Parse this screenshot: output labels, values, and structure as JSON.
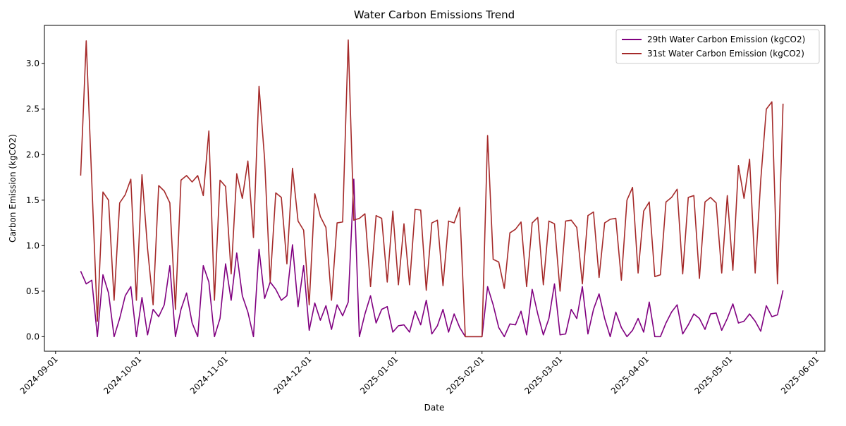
{
  "chart_data": {
    "type": "line",
    "title": "Water Carbon Emissions Trend",
    "xlabel": "Date",
    "ylabel": "Carbon Emission (kgCO2)",
    "x": [
      "2024-09-10",
      "2024-09-12",
      "2024-09-14",
      "2024-09-16",
      "2024-09-18",
      "2024-09-20",
      "2024-09-22",
      "2024-09-24",
      "2024-09-26",
      "2024-09-28",
      "2024-09-30",
      "2024-10-02",
      "2024-10-04",
      "2024-10-06",
      "2024-10-08",
      "2024-10-10",
      "2024-10-12",
      "2024-10-14",
      "2024-10-16",
      "2024-10-18",
      "2024-10-20",
      "2024-10-22",
      "2024-10-24",
      "2024-10-26",
      "2024-10-28",
      "2024-10-30",
      "2024-11-01",
      "2024-11-03",
      "2024-11-05",
      "2024-11-07",
      "2024-11-09",
      "2024-11-11",
      "2024-11-13",
      "2024-11-15",
      "2024-11-17",
      "2024-11-19",
      "2024-11-21",
      "2024-11-23",
      "2024-11-25",
      "2024-11-27",
      "2024-11-29",
      "2024-12-01",
      "2024-12-03",
      "2024-12-05",
      "2024-12-07",
      "2024-12-09",
      "2024-12-11",
      "2024-12-13",
      "2024-12-15",
      "2024-12-17",
      "2024-12-19",
      "2024-12-21",
      "2024-12-23",
      "2024-12-25",
      "2024-12-27",
      "2024-12-29",
      "2024-12-31",
      "2025-01-02",
      "2025-01-04",
      "2025-01-06",
      "2025-01-08",
      "2025-01-10",
      "2025-01-12",
      "2025-01-14",
      "2025-01-16",
      "2025-01-18",
      "2025-01-20",
      "2025-01-22",
      "2025-01-24",
      "2025-01-26",
      "2025-01-28",
      "2025-01-30",
      "2025-02-01",
      "2025-02-03",
      "2025-02-05",
      "2025-02-07",
      "2025-02-09",
      "2025-02-11",
      "2025-02-13",
      "2025-02-15",
      "2025-02-17",
      "2025-02-19",
      "2025-02-21",
      "2025-02-23",
      "2025-02-25",
      "2025-02-27",
      "2025-03-01",
      "2025-03-03",
      "2025-03-05",
      "2025-03-07",
      "2025-03-09",
      "2025-03-11",
      "2025-03-13",
      "2025-03-15",
      "2025-03-17",
      "2025-03-19",
      "2025-03-21",
      "2025-03-23",
      "2025-03-25",
      "2025-03-27",
      "2025-03-29",
      "2025-03-31",
      "2025-04-02",
      "2025-04-04",
      "2025-04-06",
      "2025-04-08",
      "2025-04-10",
      "2025-04-12",
      "2025-04-14",
      "2025-04-16",
      "2025-04-18",
      "2025-04-20",
      "2025-04-22",
      "2025-04-24",
      "2025-04-26",
      "2025-04-28",
      "2025-04-30",
      "2025-05-02",
      "2025-05-04",
      "2025-05-06",
      "2025-05-08",
      "2025-05-10",
      "2025-05-12",
      "2025-05-14",
      "2025-05-16",
      "2025-05-18",
      "2025-05-20"
    ],
    "series": [
      {
        "name": "29th Water Carbon Emission (kgCO2)",
        "color": "#800080",
        "values": [
          0.72,
          0.58,
          0.62,
          0.0,
          0.68,
          0.48,
          0.0,
          0.2,
          0.45,
          0.55,
          0.0,
          0.43,
          0.02,
          0.3,
          0.22,
          0.35,
          0.78,
          0.0,
          0.3,
          0.48,
          0.15,
          0.0,
          0.78,
          0.6,
          0.0,
          0.2,
          0.8,
          0.4,
          0.92,
          0.45,
          0.27,
          0.0,
          0.96,
          0.42,
          0.6,
          0.52,
          0.4,
          0.45,
          1.01,
          0.33,
          0.78,
          0.07,
          0.37,
          0.18,
          0.34,
          0.08,
          0.35,
          0.23,
          0.38,
          1.73,
          0.0,
          0.25,
          0.45,
          0.15,
          0.3,
          0.33,
          0.05,
          0.12,
          0.13,
          0.05,
          0.28,
          0.13,
          0.4,
          0.03,
          0.12,
          0.3,
          0.05,
          0.25,
          0.1,
          0.0,
          0.0,
          0.0,
          0.0,
          0.55,
          0.35,
          0.1,
          0.0,
          0.14,
          0.13,
          0.28,
          0.02,
          0.52,
          0.25,
          0.02,
          0.2,
          0.58,
          0.02,
          0.03,
          0.3,
          0.2,
          0.55,
          0.03,
          0.3,
          0.47,
          0.2,
          0.0,
          0.27,
          0.1,
          0.0,
          0.07,
          0.2,
          0.05,
          0.38,
          0.0,
          0.0,
          0.15,
          0.27,
          0.35,
          0.03,
          0.13,
          0.25,
          0.2,
          0.08,
          0.25,
          0.26,
          0.07,
          0.2,
          0.36,
          0.15,
          0.17,
          0.25,
          0.17,
          0.06,
          0.34,
          0.22,
          0.24,
          0.51
        ]
      },
      {
        "name": "31st Water Carbon Emission (kgCO2)",
        "color": "#a52a2a",
        "values": [
          1.77,
          3.25,
          1.7,
          0.17,
          1.59,
          1.5,
          0.4,
          1.47,
          1.56,
          1.73,
          0.4,
          1.78,
          0.97,
          0.35,
          1.66,
          1.6,
          1.47,
          0.3,
          1.72,
          1.77,
          1.7,
          1.77,
          1.55,
          2.26,
          0.4,
          1.72,
          1.65,
          0.69,
          1.79,
          1.52,
          1.93,
          1.09,
          2.75,
          1.95,
          0.6,
          1.58,
          1.53,
          0.8,
          1.85,
          1.27,
          1.17,
          0.35,
          1.57,
          1.32,
          1.2,
          0.4,
          1.25,
          1.26,
          3.26,
          1.28,
          1.3,
          1.35,
          0.55,
          1.33,
          1.3,
          0.6,
          1.38,
          0.57,
          1.24,
          0.57,
          1.4,
          1.39,
          0.51,
          1.25,
          1.28,
          0.56,
          1.27,
          1.25,
          1.42,
          0.0,
          0.0,
          0.0,
          0.0,
          2.21,
          0.85,
          0.82,
          0.53,
          1.14,
          1.18,
          1.26,
          0.55,
          1.25,
          1.31,
          0.57,
          1.27,
          1.24,
          0.5,
          1.27,
          1.28,
          1.2,
          0.58,
          1.33,
          1.37,
          0.65,
          1.25,
          1.29,
          1.3,
          0.62,
          1.5,
          1.64,
          0.7,
          1.38,
          1.48,
          0.66,
          0.68,
          1.48,
          1.53,
          1.62,
          0.69,
          1.53,
          1.55,
          0.64,
          1.48,
          1.53,
          1.47,
          0.7,
          1.55,
          0.73,
          1.88,
          1.52,
          1.95,
          0.7,
          1.72,
          2.5,
          2.58,
          0.58,
          2.56
        ]
      }
    ],
    "xlim": [
      "2024-08-28",
      "2025-06-04"
    ],
    "xticks": [
      "2024-09-01",
      "2024-10-01",
      "2024-11-01",
      "2024-12-01",
      "2025-01-01",
      "2025-02-01",
      "2025-03-01",
      "2025-04-01",
      "2025-05-01",
      "2025-06-01"
    ],
    "ylim": [
      -0.16,
      3.42
    ],
    "yticks": [
      {
        "value": 0,
        "label": "0.0"
      },
      0.5,
      {
        "value": 1,
        "label": "1.0"
      },
      1.5,
      {
        "value": 2,
        "label": "2.0"
      },
      2.5,
      {
        "value": 3,
        "label": "3.0"
      }
    ],
    "grid": false,
    "legend": "upper right"
  }
}
